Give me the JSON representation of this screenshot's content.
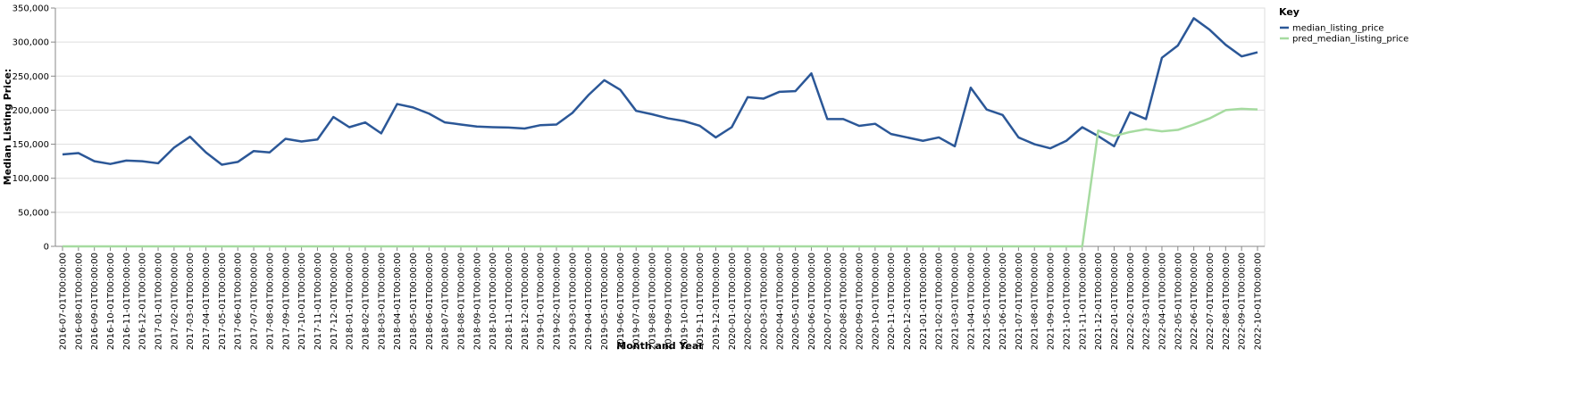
{
  "chart_data": {
    "type": "line",
    "x_label": "Month and Year",
    "y_label": "Median Listing Price:",
    "legend_title": "Key",
    "legend_position": "right",
    "grid": true,
    "categories": [
      "2016-07-01T00:00:00",
      "2016-08-01T00:00:00",
      "2016-09-01T00:00:00",
      "2016-10-01T00:00:00",
      "2016-11-01T00:00:00",
      "2016-12-01T00:00:00",
      "2017-01-01T00:00:00",
      "2017-02-01T00:00:00",
      "2017-03-01T00:00:00",
      "2017-04-01T00:00:00",
      "2017-05-01T00:00:00",
      "2017-06-01T00:00:00",
      "2017-07-01T00:00:00",
      "2017-08-01T00:00:00",
      "2017-09-01T00:00:00",
      "2017-10-01T00:00:00",
      "2017-11-01T00:00:00",
      "2017-12-01T00:00:00",
      "2018-01-01T00:00:00",
      "2018-02-01T00:00:00",
      "2018-03-01T00:00:00",
      "2018-04-01T00:00:00",
      "2018-05-01T00:00:00",
      "2018-06-01T00:00:00",
      "2018-07-01T00:00:00",
      "2018-08-01T00:00:00",
      "2018-09-01T00:00:00",
      "2018-10-01T00:00:00",
      "2018-11-01T00:00:00",
      "2018-12-01T00:00:00",
      "2019-01-01T00:00:00",
      "2019-02-01T00:00:00",
      "2019-03-01T00:00:00",
      "2019-04-01T00:00:00",
      "2019-05-01T00:00:00",
      "2019-06-01T00:00:00",
      "2019-07-01T00:00:00",
      "2019-08-01T00:00:00",
      "2019-09-01T00:00:00",
      "2019-10-01T00:00:00",
      "2019-11-01T00:00:00",
      "2019-12-01T00:00:00",
      "2020-01-01T00:00:00",
      "2020-02-01T00:00:00",
      "2020-03-01T00:00:00",
      "2020-04-01T00:00:00",
      "2020-05-01T00:00:00",
      "2020-06-01T00:00:00",
      "2020-07-01T00:00:00",
      "2020-08-01T00:00:00",
      "2020-09-01T00:00:00",
      "2020-10-01T00:00:00",
      "2020-11-01T00:00:00",
      "2020-12-01T00:00:00",
      "2021-01-01T00:00:00",
      "2021-02-01T00:00:00",
      "2021-03-01T00:00:00",
      "2021-04-01T00:00:00",
      "2021-05-01T00:00:00",
      "2021-06-01T00:00:00",
      "2021-07-01T00:00:00",
      "2021-08-01T00:00:00",
      "2021-09-01T00:00:00",
      "2021-10-01T00:00:00",
      "2021-11-01T00:00:00",
      "2021-12-01T00:00:00",
      "2022-01-01T00:00:00",
      "2022-02-01T00:00:00",
      "2022-03-01T00:00:00",
      "2022-04-01T00:00:00",
      "2022-05-01T00:00:00",
      "2022-06-01T00:00:00",
      "2022-07-01T00:00:00",
      "2022-08-01T00:00:00",
      "2022-09-01T00:00:00",
      "2022-10-01T00:00:00"
    ],
    "series": [
      {
        "name": "median_listing_price",
        "color": "#2b5797",
        "values": [
          135000,
          137000,
          125000,
          121000,
          126000,
          125000,
          122000,
          145000,
          161000,
          138000,
          120000,
          124000,
          140000,
          138000,
          158000,
          154000,
          157000,
          190000,
          175000,
          182000,
          166000,
          209000,
          204000,
          195000,
          182000,
          179000,
          176000,
          175000,
          174500,
          173000,
          178000,
          179000,
          196000,
          222000,
          244000,
          230000,
          199000,
          194000,
          188000,
          184000,
          177000,
          160000,
          175000,
          219000,
          217000,
          227000,
          228000,
          254000,
          187000,
          187000,
          177000,
          180000,
          165000,
          160000,
          155000,
          160000,
          147000,
          233000,
          201000,
          193000,
          160000,
          150000,
          144000,
          155000,
          175000,
          162000,
          147000,
          197000,
          187000,
          277000,
          295000,
          335000,
          318000,
          296000,
          279000,
          285000
        ]
      },
      {
        "name": "pred_median_listing_price",
        "color": "#a6dba0",
        "values": [
          0,
          0,
          0,
          0,
          0,
          0,
          0,
          0,
          0,
          0,
          0,
          0,
          0,
          0,
          0,
          0,
          0,
          0,
          0,
          0,
          0,
          0,
          0,
          0,
          0,
          0,
          0,
          0,
          0,
          0,
          0,
          0,
          0,
          0,
          0,
          0,
          0,
          0,
          0,
          0,
          0,
          0,
          0,
          0,
          0,
          0,
          0,
          0,
          0,
          0,
          0,
          0,
          0,
          0,
          0,
          0,
          0,
          0,
          0,
          0,
          0,
          0,
          0,
          0,
          0,
          170000,
          162000,
          168000,
          172000,
          169000,
          171000,
          179000,
          188000,
          200000,
          202000,
          201000
        ]
      }
    ],
    "ylim": [
      0,
      350000
    ],
    "yticks": [
      0,
      {
        "value": 50000,
        "label": "50,000"
      },
      {
        "value": 100000,
        "label": "100,000"
      },
      {
        "value": 150000,
        "label": "150,000"
      },
      {
        "value": 200000,
        "label": "200,000"
      },
      {
        "value": 250000,
        "label": "250,000"
      },
      {
        "value": 300000,
        "label": "300,000"
      },
      {
        "value": 350000,
        "label": "350,000"
      }
    ]
  }
}
